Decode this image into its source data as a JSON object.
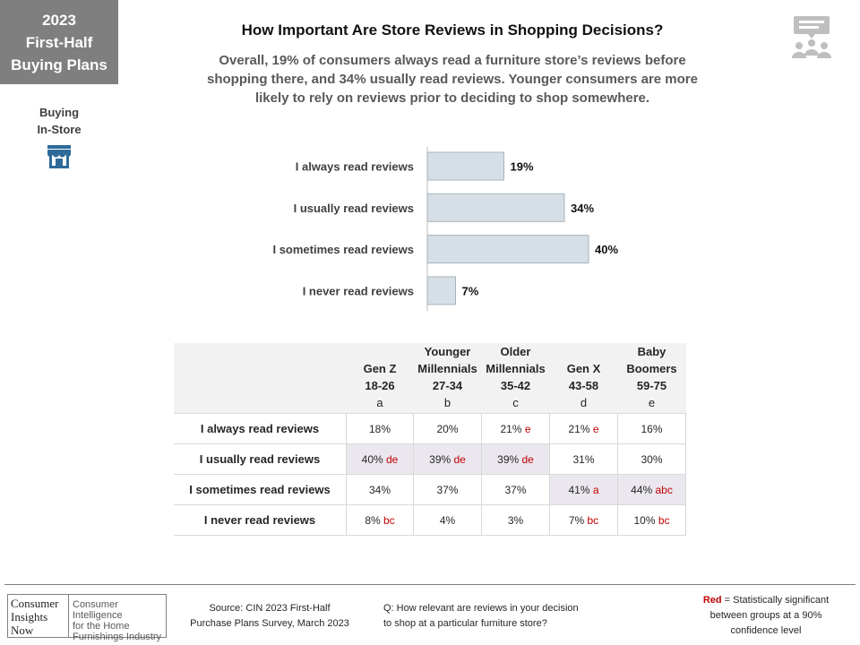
{
  "badge": {
    "year": "2023",
    "line2": "First-Half",
    "line3": "Buying Plans"
  },
  "section": {
    "line1": "Buying",
    "line2": "In-Store",
    "icon": "storefront-icon",
    "icon_color": "#2e6a99"
  },
  "presentation_icon": "audience-presentation-icon",
  "title": "How Important Are Store Reviews in Shopping Decisions?",
  "subtitle": {
    "line1": "Overall, 19% of consumers always read a furniture store’s reviews before",
    "line2": "shopping there, and 34% usually read reviews. Younger consumers are more",
    "line3": "likely to rely on reviews prior to deciding to shop somewhere."
  },
  "chart_data": {
    "type": "bar",
    "orientation": "horizontal",
    "categories": [
      "I always read reviews",
      "I usually read reviews",
      "I sometimes read reviews",
      "I never read reviews"
    ],
    "values": [
      19,
      34,
      40,
      7
    ],
    "value_labels": [
      "19%",
      "34%",
      "40%",
      "7%"
    ],
    "unit": "%",
    "bar_color": "#d6dfe5",
    "bar_stroke": "#a6b3bd",
    "xlim": [
      0,
      40
    ]
  },
  "table": {
    "columns": [
      {
        "l1": "",
        "l2": "Gen Z",
        "l3": "18-26",
        "letter": "a"
      },
      {
        "l1": "Younger",
        "l2": "Millennials",
        "l3": "27-34",
        "letter": "b"
      },
      {
        "l1": "Older",
        "l2": "Millennials",
        "l3": "35-42",
        "letter": "c"
      },
      {
        "l1": "",
        "l2": "Gen X",
        "l3": "43-58",
        "letter": "d"
      },
      {
        "l1": "Baby",
        "l2": "Boomers",
        "l3": "59-75",
        "letter": "e"
      }
    ],
    "rows": [
      {
        "label": "I always read reviews",
        "cells": [
          {
            "v": "18%",
            "sig": ""
          },
          {
            "v": "20%",
            "sig": ""
          },
          {
            "v": "21%",
            "sig": "e"
          },
          {
            "v": "21%",
            "sig": "e"
          },
          {
            "v": "16%",
            "sig": ""
          }
        ]
      },
      {
        "label": "I usually read reviews",
        "cells": [
          {
            "v": "40%",
            "sig": "de",
            "shade": true
          },
          {
            "v": "39%",
            "sig": "de",
            "shade": true
          },
          {
            "v": "39%",
            "sig": "de",
            "shade": true
          },
          {
            "v": "31%",
            "sig": ""
          },
          {
            "v": "30%",
            "sig": ""
          }
        ]
      },
      {
        "label": "I sometimes read reviews",
        "cells": [
          {
            "v": "34%",
            "sig": ""
          },
          {
            "v": "37%",
            "sig": ""
          },
          {
            "v": "37%",
            "sig": ""
          },
          {
            "v": "41%",
            "sig": "a",
            "shade": true
          },
          {
            "v": "44%",
            "sig": "abc",
            "shade": true
          }
        ]
      },
      {
        "label": "I never read reviews",
        "cells": [
          {
            "v": "8%",
            "sig": "bc"
          },
          {
            "v": "4%",
            "sig": ""
          },
          {
            "v": "3%",
            "sig": ""
          },
          {
            "v": "7%",
            "sig": "bc"
          },
          {
            "v": "10%",
            "sig": "bc"
          }
        ]
      }
    ]
  },
  "footer": {
    "logo_left": [
      "Consumer",
      "Insights",
      "Now"
    ],
    "logo_right": [
      "Consumer Intelligence",
      "for the Home",
      "Furnishings Industry"
    ],
    "source_line1": "Source: CIN 2023 First-Half",
    "source_line2": "Purchase Plans Survey, March 2023",
    "question_line1": "Q: How relevant are reviews in your decision",
    "question_line2": "to shop at a particular furniture store?",
    "note_red": "Red",
    "note_rest": " = Statistically significant",
    "note_line2": "between  groups at a 90%",
    "note_line3": "confidence level"
  }
}
